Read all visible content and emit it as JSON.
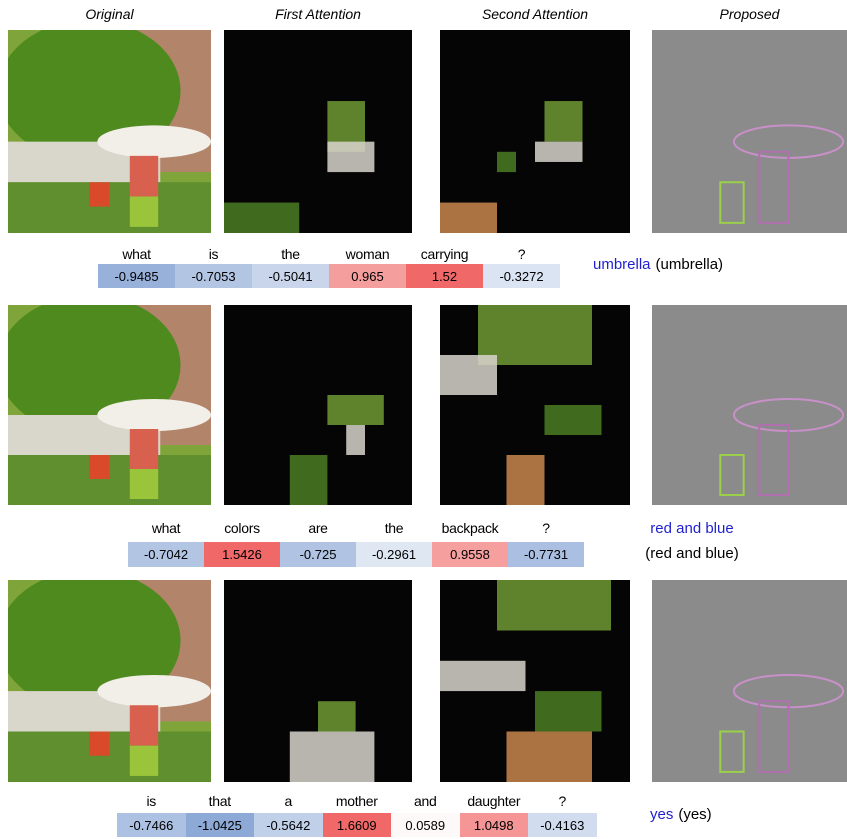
{
  "headers": [
    "Original",
    "First Attention",
    "Second Attention",
    "Proposed"
  ],
  "rows": [
    {
      "words": [
        "what",
        "is",
        "the",
        "woman",
        "carrying",
        "?"
      ],
      "weights": [
        -0.9485,
        -0.7053,
        -0.5041,
        0.965,
        1.52,
        -0.3272
      ],
      "prediction": "umbrella",
      "ground_truth": "(umbrella)"
    },
    {
      "words": [
        "what",
        "colors",
        "are",
        "the",
        "backpack",
        "?"
      ],
      "weights": [
        -0.7042,
        1.5426,
        -0.725,
        -0.2961,
        0.9558,
        -0.7731
      ],
      "prediction": "red and blue",
      "ground_truth": "(red and blue)"
    },
    {
      "words": [
        "is",
        "that",
        "a",
        "mother",
        "and",
        "daughter",
        "?"
      ],
      "weights": [
        -0.7466,
        -1.0425,
        -0.5642,
        1.6609,
        0.0589,
        1.0498,
        -0.4163
      ],
      "prediction": "yes",
      "ground_truth": "(yes)"
    }
  ]
}
